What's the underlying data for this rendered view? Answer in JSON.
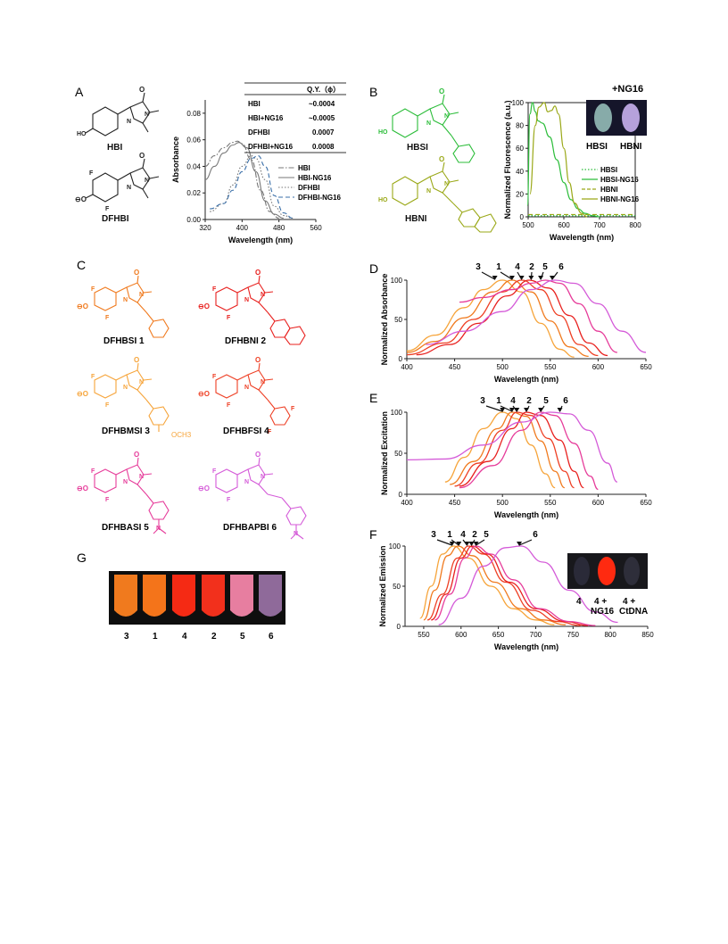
{
  "panels": {
    "A": "A",
    "B": "B",
    "C": "C",
    "D": "D",
    "E": "E",
    "F": "F",
    "G": "G"
  },
  "colors": {
    "gray": "#777777",
    "blue": "#3a6fa8",
    "green": "#2cbd3a",
    "olive": "#9aa817",
    "c1": "#f07a1e",
    "c2": "#e8201e",
    "c3": "#f6a43a",
    "c4": "#ee3f24",
    "c5": "#e63c9a",
    "c6": "#d45ad8"
  },
  "panelA": {
    "compounds": [
      "HBI",
      "DFHBI"
    ],
    "qy_table": {
      "header": "Q.Y.（ϕ）",
      "rows": [
        {
          "name": "HBI",
          "value": "~0.0004"
        },
        {
          "name": "HBI+NG16",
          "value": "~0.0005"
        },
        {
          "name": "DFHBI",
          "value": "0.0007"
        },
        {
          "name": "DFHBI+NG16",
          "value": "0.0008"
        }
      ]
    }
  },
  "panelB": {
    "compounds": [
      "HBSI",
      "HBNI"
    ],
    "photo_title": "+NG16",
    "photo_labels": [
      "HBSI",
      "HBNI"
    ]
  },
  "panelC": {
    "compounds": [
      "DFHBSI 1",
      "DFHBNI 2",
      "DFHBMSI 3",
      "DFHBFSI 4",
      "DFHBASI 5",
      "DFHBAPBI 6"
    ],
    "substituent": "OCH3"
  },
  "panelF": {
    "photo_labels": [
      "4",
      "4 +\nNG16",
      "4 +\nCtDNA"
    ]
  },
  "panelG": {
    "tube_labels": [
      "3",
      "1",
      "4",
      "2",
      "5",
      "6"
    ]
  },
  "chart_data": [
    {
      "id": "A",
      "type": "line",
      "xlabel": "Wavelength (nm)",
      "ylabel": "Absorbance",
      "xlim": [
        320,
        560
      ],
      "ylim": [
        0,
        0.09
      ],
      "xticks": [
        320,
        400,
        480,
        560
      ],
      "yticks": [
        0.0,
        0.02,
        0.04,
        0.06,
        0.08
      ],
      "legend_position": "right",
      "series": [
        {
          "name": "HBI",
          "style": "dashdot",
          "color": "#777777",
          "x": [
            320,
            340,
            360,
            380,
            390,
            400,
            420,
            440,
            460,
            480
          ],
          "y": [
            0.04,
            0.048,
            0.054,
            0.058,
            0.059,
            0.057,
            0.045,
            0.022,
            0.006,
            0.001
          ]
        },
        {
          "name": "HBI-NG16",
          "style": "solid",
          "color": "#777777",
          "x": [
            320,
            340,
            360,
            380,
            393,
            410,
            430,
            450,
            470,
            490
          ],
          "y": [
            0.03,
            0.04,
            0.05,
            0.056,
            0.058,
            0.054,
            0.036,
            0.014,
            0.004,
            0.001
          ]
        },
        {
          "name": "DFHBI",
          "style": "dotted",
          "color": "#777777",
          "x": [
            330,
            360,
            380,
            400,
            420,
            430,
            450,
            470,
            490,
            510
          ],
          "y": [
            0.006,
            0.012,
            0.026,
            0.04,
            0.048,
            0.046,
            0.03,
            0.01,
            0.003,
            0.001
          ]
        },
        {
          "name": "DFHBI-NG16",
          "style": "dashed",
          "color": "#3a6fa8",
          "x": [
            330,
            360,
            380,
            400,
            420,
            435,
            450,
            470,
            490,
            510
          ],
          "y": [
            0.008,
            0.012,
            0.022,
            0.036,
            0.046,
            0.048,
            0.04,
            0.018,
            0.005,
            0.001
          ]
        }
      ]
    },
    {
      "id": "B",
      "type": "line",
      "xlabel": "Wavelength (nm)",
      "ylabel": "Normalized Fluorescence (a.u.)",
      "xlim": [
        500,
        800
      ],
      "ylim": [
        0,
        100
      ],
      "xticks": [
        500,
        600,
        700,
        800
      ],
      "yticks": [
        0,
        20,
        40,
        60,
        80,
        100
      ],
      "legend_position": "right",
      "series": [
        {
          "name": "HBSI",
          "style": "dotted",
          "color": "#2cbd3a",
          "x": [
            500,
            600,
            700,
            800
          ],
          "y": [
            1,
            1,
            1,
            1
          ]
        },
        {
          "name": "HBSI-NG16",
          "style": "solid",
          "color": "#2cbd3a",
          "x": [
            498,
            505,
            512,
            520,
            528,
            540,
            560,
            580,
            600,
            620,
            640,
            660,
            680,
            700
          ],
          "y": [
            10,
            90,
            100,
            92,
            84,
            82,
            70,
            50,
            30,
            15,
            7,
            3,
            1,
            0
          ]
        },
        {
          "name": "HBNI",
          "style": "dashed",
          "color": "#9aa817",
          "x": [
            500,
            600,
            700,
            800
          ],
          "y": [
            2,
            2,
            2,
            2
          ]
        },
        {
          "name": "HBNI-NG16",
          "style": "solid",
          "color": "#9aa817",
          "x": [
            505,
            520,
            530,
            545,
            555,
            565,
            575,
            585,
            600,
            615,
            630,
            650,
            665
          ],
          "y": [
            20,
            80,
            96,
            100,
            92,
            93,
            97,
            90,
            60,
            30,
            12,
            3,
            0
          ]
        }
      ]
    },
    {
      "id": "D",
      "type": "line",
      "xlabel": "Wavelength (nm)",
      "ylabel": "Normalized Absorbance",
      "xlim": [
        400,
        650
      ],
      "ylim": [
        0,
        100
      ],
      "xticks": [
        400,
        450,
        500,
        550,
        600,
        650
      ],
      "yticks": [
        0,
        50,
        100
      ],
      "annotations": [
        "3",
        "1",
        "4",
        "2",
        "5",
        "6"
      ],
      "series": [
        {
          "name": "3",
          "color": "#f6a43a",
          "x": [
            400,
            430,
            460,
            480,
            500,
            520,
            540,
            560,
            575
          ],
          "y": [
            10,
            30,
            65,
            88,
            100,
            85,
            45,
            12,
            2
          ]
        },
        {
          "name": "1",
          "color": "#f07a1e",
          "x": [
            400,
            430,
            460,
            490,
            510,
            530,
            550,
            570,
            590
          ],
          "y": [
            8,
            22,
            52,
            85,
            100,
            85,
            48,
            15,
            3
          ]
        },
        {
          "name": "4",
          "color": "#ee3f24",
          "x": [
            400,
            440,
            470,
            500,
            520,
            540,
            560,
            580,
            600
          ],
          "y": [
            5,
            20,
            50,
            85,
            100,
            88,
            55,
            18,
            4
          ]
        },
        {
          "name": "2",
          "color": "#e8201e",
          "x": [
            410,
            445,
            475,
            505,
            528,
            548,
            570,
            590,
            610
          ],
          "y": [
            5,
            18,
            45,
            80,
            100,
            90,
            55,
            20,
            4
          ]
        },
        {
          "name": "5",
          "color": "#e63c9a",
          "x": [
            455,
            480,
            510,
            530,
            545,
            560,
            580,
            600,
            620
          ],
          "y": [
            72,
            78,
            88,
            96,
            100,
            96,
            70,
            35,
            8
          ]
        },
        {
          "name": "6",
          "color": "#d45ad8",
          "x": [
            420,
            460,
            500,
            530,
            555,
            575,
            600,
            625,
            650
          ],
          "y": [
            18,
            35,
            60,
            88,
            100,
            96,
            70,
            35,
            8
          ]
        }
      ]
    },
    {
      "id": "E",
      "type": "line",
      "xlabel": "Wavelength (nm)",
      "ylabel": "Normalized Excitation",
      "xlim": [
        400,
        650
      ],
      "ylim": [
        0,
        100
      ],
      "xticks": [
        400,
        450,
        500,
        550,
        600,
        650
      ],
      "yticks": [
        0,
        50,
        100
      ],
      "annotations": [
        "3",
        "1",
        "4",
        "2",
        "5",
        "6"
      ],
      "series": [
        {
          "name": "3",
          "color": "#f6a43a",
          "x": [
            440,
            460,
            480,
            500,
            515,
            530,
            545,
            555
          ],
          "y": [
            15,
            45,
            80,
            100,
            92,
            60,
            25,
            8
          ]
        },
        {
          "name": "1",
          "color": "#f07a1e",
          "x": [
            445,
            470,
            495,
            510,
            525,
            540,
            555,
            565
          ],
          "y": [
            12,
            40,
            80,
            100,
            95,
            65,
            28,
            8
          ]
        },
        {
          "name": "4",
          "color": "#ee3f24",
          "x": [
            450,
            475,
            500,
            515,
            530,
            548,
            565,
            575
          ],
          "y": [
            10,
            38,
            78,
            100,
            96,
            68,
            28,
            8
          ]
        },
        {
          "name": "2",
          "color": "#e8201e",
          "x": [
            455,
            485,
            510,
            525,
            540,
            560,
            575,
            585
          ],
          "y": [
            10,
            40,
            80,
            100,
            96,
            66,
            28,
            8
          ]
        },
        {
          "name": "5",
          "color": "#e63c9a",
          "x": [
            455,
            490,
            520,
            540,
            555,
            575,
            592,
            600
          ],
          "y": [
            8,
            35,
            78,
            100,
            96,
            62,
            22,
            6
          ]
        },
        {
          "name": "6",
          "color": "#d45ad8",
          "x": [
            400,
            440,
            480,
            520,
            550,
            570,
            590,
            610,
            620
          ],
          "y": [
            42,
            43,
            60,
            88,
            100,
            98,
            78,
            38,
            15
          ]
        }
      ]
    },
    {
      "id": "F",
      "type": "line",
      "xlabel": "Wavelength (nm)",
      "ylabel": "Normalized Emission",
      "xlim": [
        525,
        850
      ],
      "ylim": [
        0,
        100
      ],
      "xticks": [
        550,
        600,
        650,
        700,
        750,
        800,
        850
      ],
      "yticks": [
        0,
        50,
        100
      ],
      "annotations": [
        "3",
        "1",
        "4",
        "2",
        "5",
        "6"
      ],
      "series": [
        {
          "name": "3",
          "color": "#f6a43a",
          "x": [
            545,
            560,
            575,
            590,
            610,
            640,
            670,
            700,
            725
          ],
          "y": [
            10,
            50,
            90,
            100,
            85,
            50,
            22,
            8,
            2
          ]
        },
        {
          "name": "1",
          "color": "#f07a1e",
          "x": [
            550,
            565,
            582,
            596,
            615,
            645,
            680,
            710,
            740
          ],
          "y": [
            8,
            45,
            88,
            100,
            88,
            55,
            22,
            8,
            2
          ]
        },
        {
          "name": "4",
          "color": "#ee3f24",
          "x": [
            555,
            575,
            595,
            610,
            630,
            660,
            695,
            730,
            760
          ],
          "y": [
            8,
            40,
            85,
            100,
            90,
            55,
            20,
            6,
            1
          ]
        },
        {
          "name": "2",
          "color": "#e8201e",
          "x": [
            560,
            580,
            600,
            615,
            635,
            665,
            700,
            740,
            770
          ],
          "y": [
            8,
            40,
            85,
            100,
            90,
            55,
            22,
            6,
            1
          ]
        },
        {
          "name": "5",
          "color": "#e63c9a",
          "x": [
            565,
            585,
            605,
            620,
            640,
            670,
            705,
            745,
            780
          ],
          "y": [
            8,
            40,
            85,
            100,
            90,
            58,
            22,
            6,
            1
          ]
        },
        {
          "name": "6",
          "color": "#d45ad8",
          "x": [
            570,
            600,
            630,
            660,
            680,
            710,
            745,
            780,
            810
          ],
          "y": [
            2,
            35,
            75,
            98,
            100,
            80,
            45,
            18,
            5
          ]
        }
      ]
    }
  ]
}
